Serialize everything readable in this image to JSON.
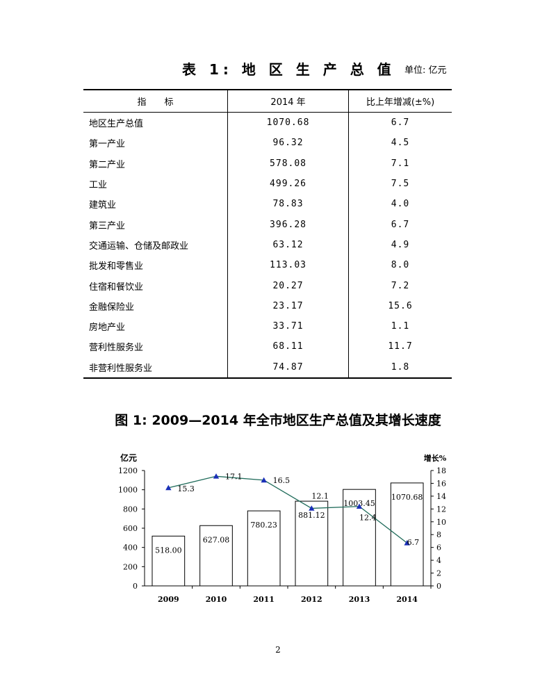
{
  "table": {
    "title": "表 1: 地 区 生 产 总 值",
    "unit": "单位: 亿元",
    "headers": [
      "指　　标",
      "2014 年",
      "比上年增减(±%)"
    ],
    "rows": [
      [
        "地区生产总值",
        "1070.68",
        "6.7"
      ],
      [
        "第一产业",
        "96.32",
        "4.5"
      ],
      [
        "第二产业",
        "578.08",
        "7.1"
      ],
      [
        "工业",
        "499.26",
        "7.5"
      ],
      [
        "建筑业",
        "78.83",
        "4.0"
      ],
      [
        "第三产业",
        "396.28",
        "6.7"
      ],
      [
        "交通运输、仓储及邮政业",
        "63.12",
        "4.9"
      ],
      [
        "批发和零售业",
        "113.03",
        "8.0"
      ],
      [
        "住宿和餐饮业",
        "20.27",
        "7.2"
      ],
      [
        "金融保险业",
        "23.17",
        "15.6"
      ],
      [
        "房地产业",
        "33.71",
        "1.1"
      ],
      [
        "营利性服务业",
        "68.11",
        "11.7"
      ],
      [
        "非营利性服务业",
        "74.87",
        "1.8"
      ]
    ]
  },
  "chart_title": "图 1: 2009—2014 年全市地区生产总值及其增长速度",
  "chart_data": {
    "type": "bar",
    "categories": [
      "2009",
      "2010",
      "2011",
      "2012",
      "2013",
      "2014"
    ],
    "series": [
      {
        "values": [
          518.0,
          627.08,
          780.23,
          881.12,
          1003.45,
          1070.68
        ],
        "labels": [
          "518.00",
          "627.08",
          "780.23",
          "881.12",
          "1003.45",
          "1070.68"
        ],
        "axis": "left",
        "type": "bar"
      },
      {
        "values": [
          15.3,
          17.1,
          16.5,
          12.1,
          12.4,
          6.7
        ],
        "labels": [
          "15.3",
          "17.1",
          "16.5",
          "12.1",
          "12.4",
          "6.7"
        ],
        "axis": "right",
        "type": "line",
        "marker": "triangle"
      }
    ],
    "ylabel": "亿元",
    "y2label": "增长%",
    "ylim": [
      0,
      1200
    ],
    "y2lim": [
      0,
      18
    ],
    "yticks": [
      "0",
      "200",
      "400",
      "600",
      "800",
      "1000",
      "1200"
    ],
    "y2ticks": [
      "0",
      "2",
      "4",
      "6",
      "8",
      "10",
      "12",
      "14",
      "16",
      "18"
    ],
    "grid": false,
    "colors": {
      "bar_fill": "#ffffff",
      "bar_stroke": "#000000",
      "line": "#1f6b5a",
      "marker": "#1a2fb8"
    }
  },
  "page_number": "2"
}
